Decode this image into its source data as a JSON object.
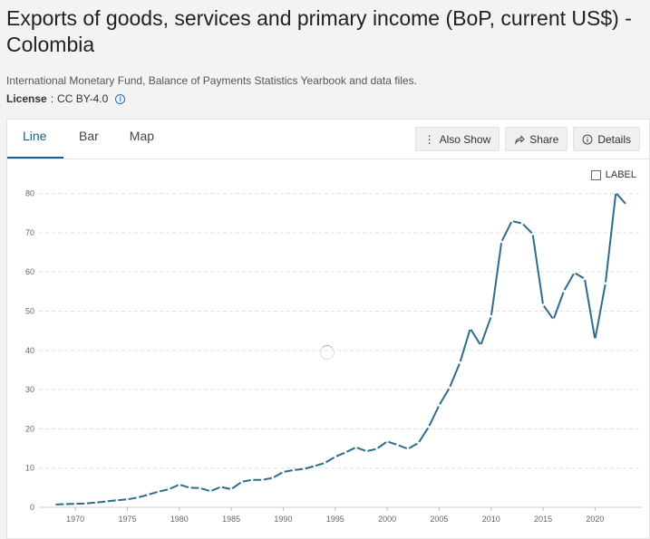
{
  "title": "Exports of goods, services and primary income (BoP, current US$) - Colombia",
  "source": "International Monetary Fund, Balance of Payments Statistics Yearbook and data files.",
  "license": {
    "label": "License",
    "value": "CC BY-4.0"
  },
  "tabs": [
    {
      "label": "Line",
      "active": true
    },
    {
      "label": "Bar",
      "active": false
    },
    {
      "label": "Map",
      "active": false
    }
  ],
  "actions": [
    {
      "label": "Also Show",
      "icon": "vertical-dots-icon"
    },
    {
      "label": "Share",
      "icon": "share-icon"
    },
    {
      "label": "Details",
      "icon": "info-circle-icon"
    }
  ],
  "label_toggle": "LABEL",
  "colors": {
    "line": "#2e6b8c",
    "accent": "#1a5d8e",
    "grid": "#e0e0e0"
  },
  "chart_data": {
    "type": "line",
    "ylim": [
      0,
      85
    ],
    "yticks": [
      0,
      10,
      20,
      30,
      40,
      50,
      60,
      70,
      80
    ],
    "xlim": [
      1966.5,
      2024.5
    ],
    "xticks": [
      1970,
      1975,
      1980,
      1985,
      1990,
      1995,
      2000,
      2005,
      2010,
      2015,
      2020
    ],
    "grid": true,
    "x": [
      1968,
      1969,
      1970,
      1971,
      1972,
      1973,
      1974,
      1975,
      1976,
      1977,
      1978,
      1979,
      1980,
      1981,
      1982,
      1983,
      1984,
      1985,
      1986,
      1987,
      1988,
      1989,
      1990,
      1991,
      1992,
      1993,
      1994,
      1995,
      1996,
      1997,
      1998,
      1999,
      2000,
      2001,
      2002,
      2003,
      2004,
      2005,
      2006,
      2007,
      2008,
      2009,
      2010,
      2011,
      2012,
      2013,
      2014,
      2015,
      2016,
      2017,
      2018,
      2019,
      2020,
      2021,
      2022,
      2023
    ],
    "series": [
      {
        "values": [
          0.7,
          0.8,
          0.9,
          1.0,
          1.2,
          1.5,
          1.8,
          2.0,
          2.5,
          3.2,
          4.0,
          4.6,
          5.8,
          5.0,
          4.9,
          4.1,
          5.2,
          4.6,
          6.5,
          7.0,
          7.0,
          7.5,
          9.0,
          9.5,
          9.8,
          10.5,
          11.3,
          12.9,
          14.0,
          15.3,
          14.3,
          14.9,
          16.8,
          15.9,
          14.9,
          16.4,
          20.5,
          26.0,
          30.5,
          36.9,
          45.6,
          41.3,
          48.7,
          67.7,
          73.0,
          72.4,
          69.7,
          51.6,
          47.9,
          55.1,
          59.8,
          58.3,
          42.8,
          57.1,
          80.2,
          77.2
        ]
      }
    ]
  }
}
